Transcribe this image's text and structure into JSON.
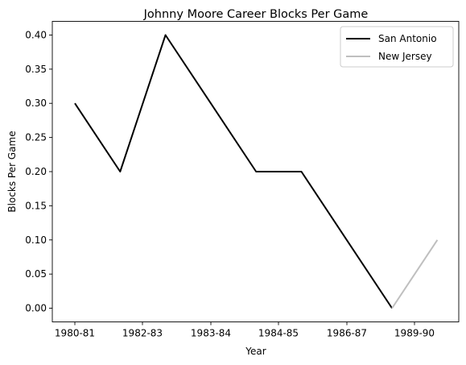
{
  "chart_data": {
    "type": "line",
    "title": "Johnny Moore  Career Blocks Per Game",
    "xlabel": "Year",
    "ylabel": "Blocks Per Game",
    "x_tick_labels": [
      "1980-81",
      "1982-83",
      "1983-84",
      "1984-85",
      "1986-87",
      "1989-90"
    ],
    "y_ticks": [
      "0.00",
      "0.05",
      "0.10",
      "0.15",
      "0.20",
      "0.25",
      "0.30",
      "0.35",
      "0.40"
    ],
    "ylim": [
      -0.02,
      0.42
    ],
    "grid": false,
    "legend_position": "top-right",
    "series": [
      {
        "name": "San Antonio",
        "color": "#000000",
        "points": [
          {
            "season": "1980-81",
            "value": 0.3
          },
          {
            "season": "1981-82",
            "value": 0.2
          },
          {
            "season": "1982-83",
            "value": 0.4
          },
          {
            "season": "1983-84",
            "value": 0.3
          },
          {
            "season": "1984-85",
            "value": 0.2
          },
          {
            "season": "1985-86",
            "value": 0.2
          },
          {
            "season": "1986-87",
            "value": 0.1
          },
          {
            "season": "1988-89",
            "value": 0.0
          }
        ]
      },
      {
        "name": "New Jersey",
        "color": "#bfbfbf",
        "points": [
          {
            "season": "1988-89",
            "value": 0.0
          },
          {
            "season": "1989-90",
            "value": 0.1
          }
        ]
      }
    ]
  }
}
